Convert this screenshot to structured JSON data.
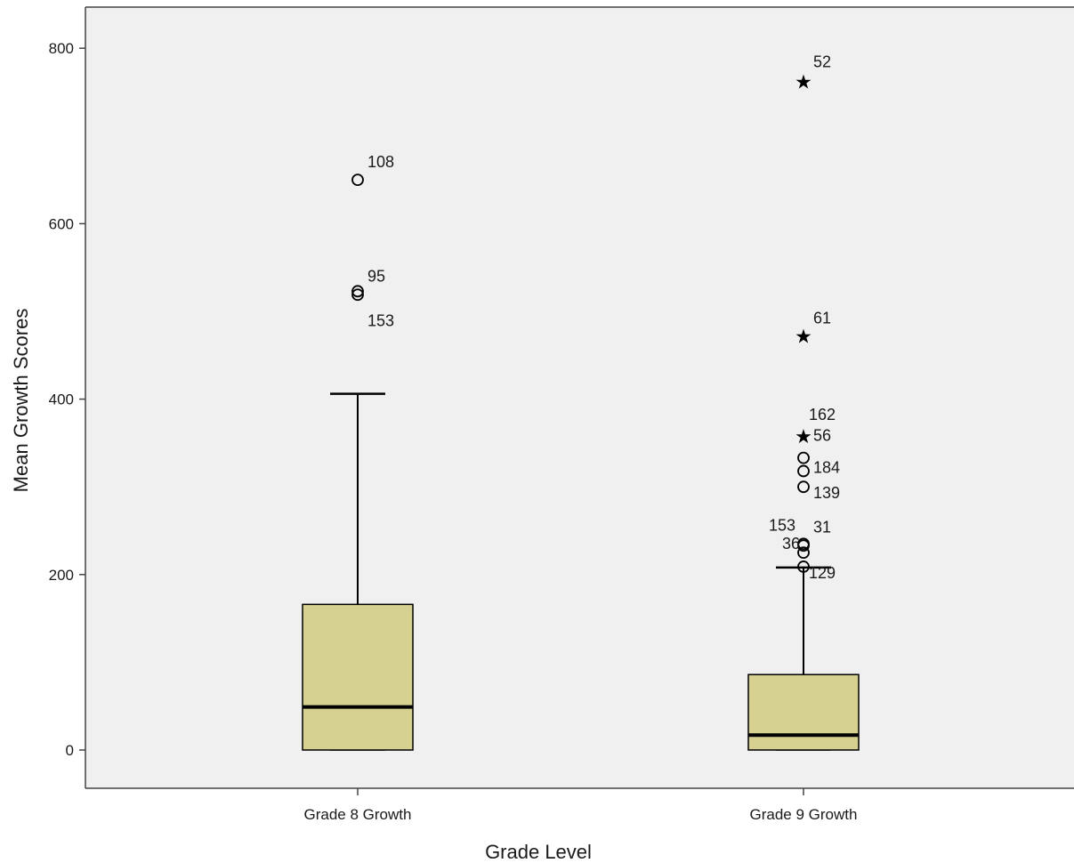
{
  "chart_data": {
    "type": "boxplot",
    "xlabel": "Grade Level",
    "ylabel": "Mean Growth Scores",
    "ylim": [
      -45,
      850
    ],
    "yticks": [
      0,
      200,
      400,
      600,
      800
    ],
    "grid": false,
    "colors": {
      "plot_bg": "#f0f0f0",
      "box_fill": "#d6d190",
      "stroke": "#000000",
      "frame": "#444444"
    },
    "groups": [
      {
        "label": "Grade 8 Growth",
        "min": 0,
        "q1": 0,
        "median": 49,
        "q3": 166,
        "max": 406,
        "outliers": [
          {
            "label": "108",
            "value": 650,
            "marker": "circle",
            "label_dx": 0.05,
            "label_dy": 20
          },
          {
            "label": "95",
            "value": 523,
            "marker": "circle",
            "label_dx": 0.05,
            "label_dy": 17
          },
          {
            "label": "153",
            "value": 519,
            "marker": "circle",
            "label_dx": 0.05,
            "label_dy": -29
          }
        ]
      },
      {
        "label": "Grade 9 Growth",
        "min": 0,
        "q1": 0,
        "median": 17,
        "q3": 86,
        "max": 208,
        "outliers": [
          {
            "label": "52",
            "value": 764,
            "marker": "star",
            "label_dx": 0.05,
            "label_dy": 20
          },
          {
            "label": "61",
            "value": 474,
            "marker": "star",
            "label_dx": 0.05,
            "label_dy": 18
          },
          {
            "label": "162",
            "value": 360,
            "marker": "star",
            "label_dx": 0.0,
            "label_dy": 22
          },
          {
            "label": "56",
            "value": 333,
            "marker": "circle",
            "label_dx": 0.05,
            "label_dy": 25
          },
          {
            "label": "184",
            "value": 318,
            "marker": "circle",
            "label_dx": 0.05,
            "label_dy": 4
          },
          {
            "label": "139",
            "value": 300,
            "marker": "circle",
            "label_dx": 0.05,
            "label_dy": -7
          },
          {
            "label": "153",
            "value": 235,
            "marker": "circle",
            "label_dx": -0.45,
            "label_dy": 21
          },
          {
            "label": "31",
            "value": 233,
            "marker": "circle",
            "label_dx": 0.05,
            "label_dy": 21
          },
          {
            "label": "36",
            "value": 225,
            "marker": "circle",
            "label_dx": -0.3,
            "label_dy": 10
          },
          {
            "label": "129",
            "value": 209,
            "marker": "circle",
            "label_dx": 0.0,
            "label_dy": -7
          }
        ]
      }
    ]
  }
}
